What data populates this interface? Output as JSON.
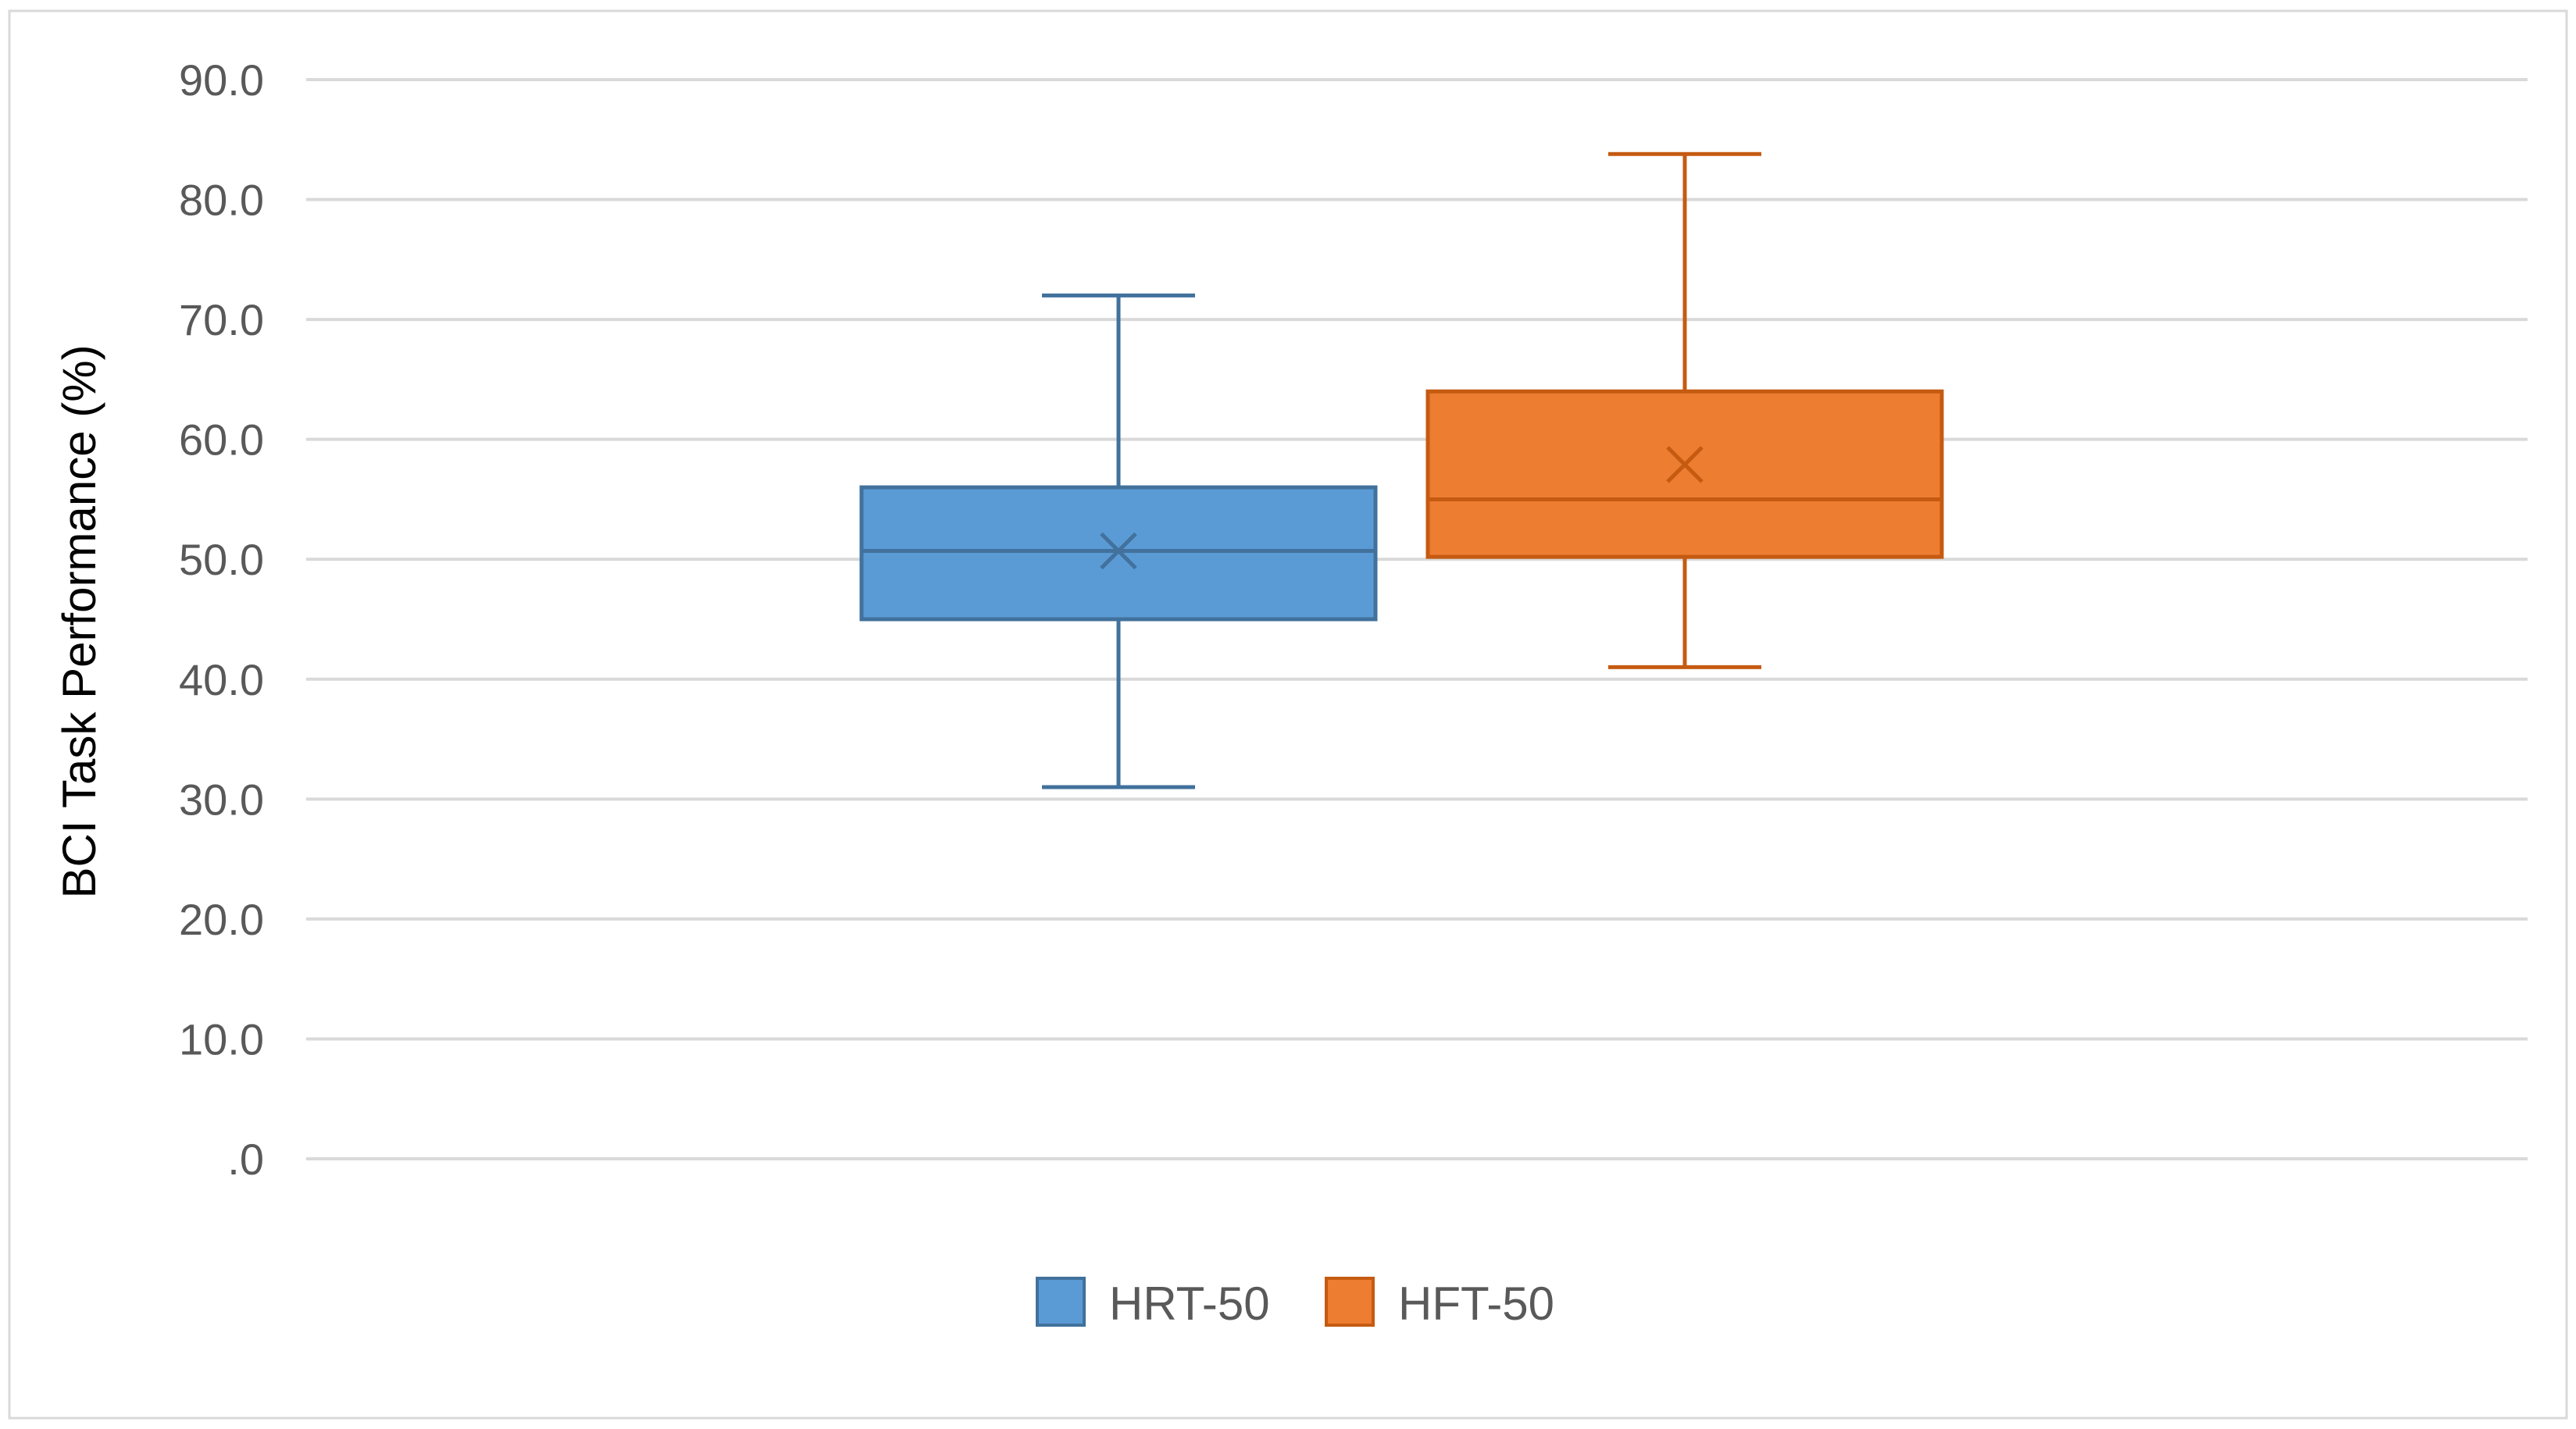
{
  "chart_data": {
    "type": "box",
    "title": "",
    "xlabel": "",
    "ylabel": "BCI Task Performance (%)",
    "ylim": [
      0,
      90
    ],
    "yticks": [
      0,
      10,
      20,
      30,
      40,
      50,
      60,
      70,
      80,
      90
    ],
    "ytick_labels": [
      ".0",
      "10.0",
      "20.0",
      "30.0",
      "40.0",
      "50.0",
      "60.0",
      "70.0",
      "80.0",
      "90.0"
    ],
    "grid": true,
    "legend_position": "bottom",
    "series": [
      {
        "name": "HRT-50",
        "color": "#5B9BD5",
        "edge_color": "#41719C",
        "min": 31,
        "q1": 45,
        "median": 50.7,
        "q3": 56,
        "max": 72,
        "mean": 50.7
      },
      {
        "name": "HFT-50",
        "color": "#ED7D31",
        "edge_color": "#C55A11",
        "min": 41,
        "q1": 50.2,
        "median": 55,
        "q3": 64,
        "max": 83.8,
        "mean": 57.9
      }
    ]
  }
}
